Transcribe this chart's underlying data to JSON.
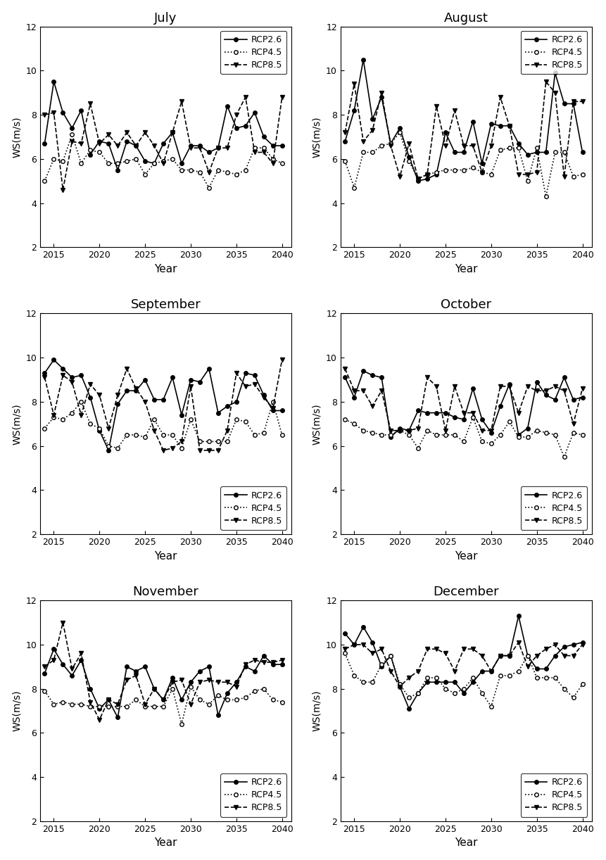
{
  "months": [
    "July",
    "August",
    "September",
    "October",
    "November",
    "December"
  ],
  "years": [
    2014,
    2015,
    2016,
    2017,
    2018,
    2019,
    2020,
    2021,
    2022,
    2023,
    2024,
    2025,
    2026,
    2027,
    2028,
    2029,
    2030,
    2031,
    2032,
    2033,
    2034,
    2035,
    2036,
    2037,
    2038,
    2039,
    2040
  ],
  "series": {
    "July": {
      "RCP2.6": [
        6.7,
        9.5,
        8.1,
        7.4,
        8.2,
        6.2,
        6.8,
        6.7,
        5.5,
        6.8,
        6.6,
        5.9,
        5.8,
        6.7,
        7.2,
        5.8,
        6.6,
        6.6,
        6.3,
        6.5,
        8.4,
        7.4,
        7.5,
        8.1,
        7.0,
        6.6,
        6.6
      ],
      "RCP4.5": [
        5.0,
        6.0,
        5.9,
        7.1,
        5.8,
        6.4,
        6.3,
        5.8,
        5.8,
        5.9,
        6.0,
        5.3,
        5.8,
        5.9,
        6.0,
        5.5,
        5.5,
        5.4,
        4.7,
        5.5,
        5.4,
        5.3,
        5.5,
        6.5,
        6.5,
        6.0,
        5.8
      ],
      "RCP8.5": [
        8.0,
        8.1,
        4.6,
        6.8,
        6.7,
        8.5,
        6.7,
        7.1,
        6.6,
        7.2,
        6.6,
        7.2,
        6.6,
        5.8,
        7.2,
        8.6,
        6.5,
        6.5,
        5.4,
        6.5,
        6.5,
        8.0,
        8.8,
        6.3,
        6.3,
        5.8,
        8.8
      ]
    },
    "August": {
      "RCP2.6": [
        6.8,
        8.2,
        10.5,
        7.8,
        8.8,
        6.7,
        7.4,
        6.1,
        5.0,
        5.1,
        5.3,
        7.2,
        6.3,
        6.3,
        7.7,
        5.8,
        7.6,
        7.5,
        7.5,
        6.7,
        6.2,
        6.3,
        6.3,
        9.9,
        8.5,
        8.5,
        6.3
      ],
      "RCP4.5": [
        5.9,
        4.7,
        6.3,
        6.3,
        6.6,
        6.7,
        7.2,
        5.9,
        5.1,
        5.3,
        5.4,
        5.5,
        5.5,
        5.5,
        5.6,
        5.4,
        5.3,
        6.4,
        6.5,
        6.5,
        5.0,
        6.5,
        4.3,
        6.3,
        6.3,
        5.2,
        5.3
      ],
      "RCP8.5": [
        7.2,
        9.4,
        6.8,
        7.3,
        9.0,
        6.6,
        5.2,
        6.7,
        5.1,
        5.3,
        8.4,
        6.6,
        8.2,
        6.6,
        6.6,
        5.4,
        6.6,
        8.8,
        7.5,
        5.3,
        5.3,
        5.4,
        9.5,
        9.0,
        5.2,
        8.6,
        8.6
      ]
    },
    "September": {
      "RCP2.6": [
        9.3,
        9.9,
        9.5,
        9.1,
        9.2,
        8.2,
        6.7,
        5.8,
        7.9,
        8.5,
        8.5,
        9.0,
        8.1,
        8.1,
        9.1,
        7.4,
        9.0,
        8.9,
        9.5,
        7.5,
        7.8,
        8.0,
        9.3,
        9.2,
        8.3,
        7.6,
        7.6
      ],
      "RCP4.5": [
        6.8,
        7.3,
        7.2,
        7.5,
        8.0,
        7.0,
        6.8,
        6.0,
        5.9,
        6.5,
        6.5,
        6.4,
        7.2,
        6.5,
        6.5,
        5.9,
        7.2,
        6.2,
        6.2,
        6.2,
        6.2,
        7.2,
        7.1,
        6.5,
        6.6,
        8.0,
        6.5
      ],
      "RCP8.5": [
        9.1,
        7.4,
        9.2,
        8.9,
        7.4,
        8.8,
        8.3,
        6.8,
        8.3,
        9.5,
        8.6,
        8.0,
        6.7,
        5.8,
        5.9,
        6.2,
        8.7,
        5.8,
        5.8,
        5.8,
        6.7,
        9.3,
        8.7,
        8.8,
        8.2,
        7.7,
        9.9
      ]
    },
    "October": {
      "RCP2.6": [
        9.1,
        8.2,
        9.4,
        9.2,
        9.1,
        6.4,
        6.8,
        6.7,
        7.6,
        7.5,
        7.5,
        7.5,
        7.3,
        7.2,
        8.6,
        7.2,
        6.6,
        7.8,
        8.8,
        6.5,
        6.8,
        8.9,
        8.3,
        8.1,
        9.1,
        8.1,
        8.2
      ],
      "RCP4.5": [
        7.2,
        7.0,
        6.7,
        6.6,
        6.5,
        6.5,
        6.7,
        6.5,
        5.9,
        6.7,
        6.5,
        6.5,
        6.5,
        6.2,
        7.3,
        6.2,
        6.1,
        6.5,
        7.1,
        6.4,
        6.4,
        6.7,
        6.6,
        6.5,
        5.5,
        6.6,
        6.5
      ],
      "RCP8.5": [
        9.5,
        8.5,
        8.5,
        7.8,
        8.5,
        6.7,
        6.7,
        6.7,
        6.8,
        9.1,
        8.7,
        6.7,
        8.7,
        7.5,
        7.5,
        6.7,
        6.7,
        8.7,
        8.7,
        7.5,
        8.7,
        8.5,
        8.5,
        8.7,
        8.5,
        7.0,
        8.6
      ]
    },
    "November": {
      "RCP2.6": [
        8.7,
        9.8,
        9.1,
        8.6,
        9.3,
        8.0,
        7.1,
        7.5,
        6.7,
        9.0,
        8.8,
        9.0,
        8.0,
        7.5,
        8.5,
        7.5,
        8.3,
        8.8,
        9.0,
        6.8,
        7.8,
        8.3,
        9.0,
        8.8,
        9.5,
        9.1,
        9.1
      ],
      "RCP4.5": [
        7.9,
        7.3,
        7.4,
        7.3,
        7.3,
        7.2,
        7.2,
        7.2,
        7.2,
        7.2,
        7.5,
        7.2,
        7.2,
        7.2,
        8.0,
        6.4,
        8.1,
        7.5,
        7.3,
        7.7,
        7.5,
        7.5,
        7.6,
        7.9,
        8.0,
        7.5,
        7.4
      ],
      "RCP8.5": [
        9.0,
        9.3,
        11.0,
        8.9,
        9.6,
        7.4,
        6.6,
        7.5,
        7.3,
        8.4,
        8.6,
        7.3,
        8.0,
        7.5,
        8.3,
        8.4,
        7.3,
        8.3,
        8.4,
        8.3,
        8.3,
        8.1,
        9.1,
        9.3,
        9.2,
        9.2,
        9.3
      ]
    },
    "December": {
      "RCP2.6": [
        10.5,
        10.0,
        10.8,
        10.1,
        9.0,
        9.5,
        8.1,
        7.1,
        7.8,
        8.3,
        8.3,
        8.3,
        8.3,
        7.8,
        8.3,
        8.8,
        8.8,
        9.5,
        9.5,
        11.3,
        9.5,
        8.9,
        8.9,
        9.5,
        9.9,
        10.0,
        10.1
      ],
      "RCP4.5": [
        9.6,
        8.6,
        8.3,
        8.3,
        9.1,
        9.5,
        8.2,
        7.6,
        7.8,
        8.5,
        8.5,
        8.0,
        7.8,
        8.0,
        8.5,
        7.8,
        7.2,
        8.6,
        8.6,
        8.8,
        9.5,
        8.5,
        8.5,
        8.5,
        8.0,
        7.6,
        8.2
      ],
      "RCP8.5": [
        9.8,
        10.0,
        10.0,
        9.6,
        9.8,
        8.8,
        8.1,
        8.5,
        8.8,
        9.8,
        9.8,
        9.6,
        8.8,
        9.8,
        9.8,
        9.5,
        8.8,
        9.5,
        9.5,
        10.1,
        9.0,
        9.5,
        9.8,
        10.0,
        9.5,
        9.5,
        10.0
      ]
    }
  },
  "ylim": [
    2,
    12
  ],
  "yticks": [
    2,
    4,
    6,
    8,
    10,
    12
  ],
  "xlim": [
    2013.5,
    2041.0
  ],
  "xticks": [
    2015,
    2020,
    2025,
    2030,
    2035,
    2040
  ],
  "ylabel": "WS(m/s)",
  "xlabel": "Year",
  "line_styles": {
    "RCP2.6": "-",
    "RCP4.5": ":",
    "RCP8.5": "--"
  },
  "markers": {
    "RCP2.6": "o",
    "RCP4.5": "o",
    "RCP8.5": "v"
  },
  "marker_fill": {
    "RCP2.6": "black",
    "RCP4.5": "white",
    "RCP8.5": "black"
  },
  "markersize": 4,
  "linewidth": 1.2,
  "legend_top_months": [
    "July",
    "August"
  ],
  "legend_bottom_months": [
    "September",
    "October",
    "November",
    "December"
  ]
}
